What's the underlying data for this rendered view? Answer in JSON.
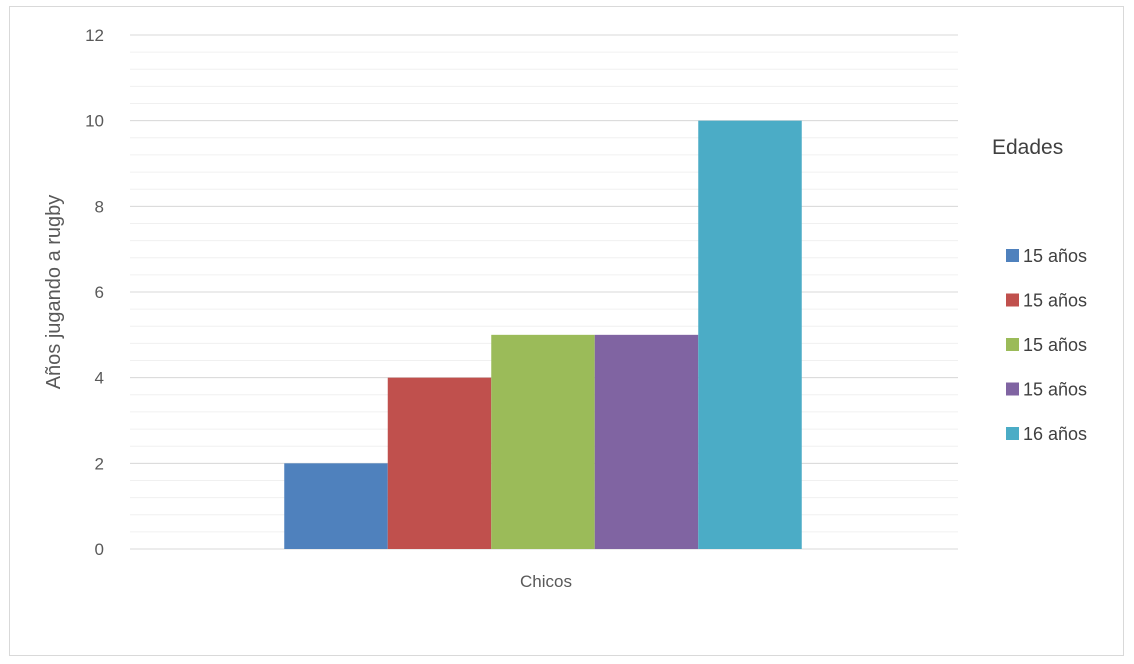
{
  "chart_data": {
    "type": "bar",
    "categories": [
      "Chicos"
    ],
    "series": [
      {
        "name": "15 años",
        "values": [
          2
        ],
        "color": "#4F81BD"
      },
      {
        "name": "15 años",
        "values": [
          4
        ],
        "color": "#C0504D"
      },
      {
        "name": "15 años",
        "values": [
          5
        ],
        "color": "#9BBB59"
      },
      {
        "name": "15 años",
        "values": [
          5
        ],
        "color": "#8064A2"
      },
      {
        "name": "16 años",
        "values": [
          10
        ],
        "color": "#4BACC6"
      }
    ],
    "xlabel": "",
    "ylabel": "Años jugando a rugby",
    "ylim": [
      0,
      12
    ],
    "yticks": [
      "0",
      "2",
      "4",
      "6",
      "8",
      "10",
      "12"
    ],
    "grid": true,
    "legend_title": "Edades",
    "legend_position": "right"
  }
}
